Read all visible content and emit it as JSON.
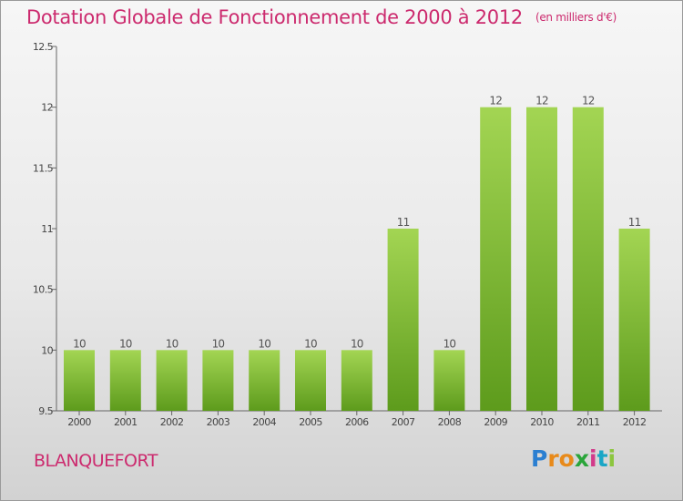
{
  "title": "Dotation Globale de Fonctionnement de 2000 à 2012",
  "subtitle": "(en milliers d'€)",
  "commune": "BLANQUEFORT",
  "logo": {
    "letters": [
      "P",
      "r",
      "o",
      "x",
      "i",
      "t",
      "i"
    ],
    "colors": [
      "#2b7fd1",
      "#e88a1a",
      "#e88a1a",
      "#2aa53a",
      "#d23a8a",
      "#1aa6c6",
      "#8cc63f"
    ]
  },
  "colors": {
    "title": "#cc2a6e",
    "bar_light": "#9ed14f",
    "bar_dark": "#5d9b1c"
  },
  "chart_data": {
    "type": "bar",
    "categories": [
      "2000",
      "2001",
      "2002",
      "2003",
      "2004",
      "2005",
      "2006",
      "2007",
      "2008",
      "2009",
      "2010",
      "2011",
      "2012"
    ],
    "values": [
      10,
      10,
      10,
      10,
      10,
      10,
      10,
      11,
      10,
      12,
      12,
      12,
      11
    ],
    "data_labels": [
      "10",
      "10",
      "10",
      "10",
      "10",
      "10",
      "10",
      "11",
      "10",
      "12",
      "12",
      "12",
      "11"
    ],
    "ylim": [
      9.5,
      12.5
    ],
    "yticks": [
      9.5,
      10,
      10.5,
      11,
      11.5,
      12,
      12.5
    ],
    "ytick_labels": [
      "9.5",
      "10",
      "10.5",
      "11",
      "11.5",
      "12",
      "12.5"
    ],
    "xlabel": "",
    "ylabel": "",
    "grid": false
  }
}
